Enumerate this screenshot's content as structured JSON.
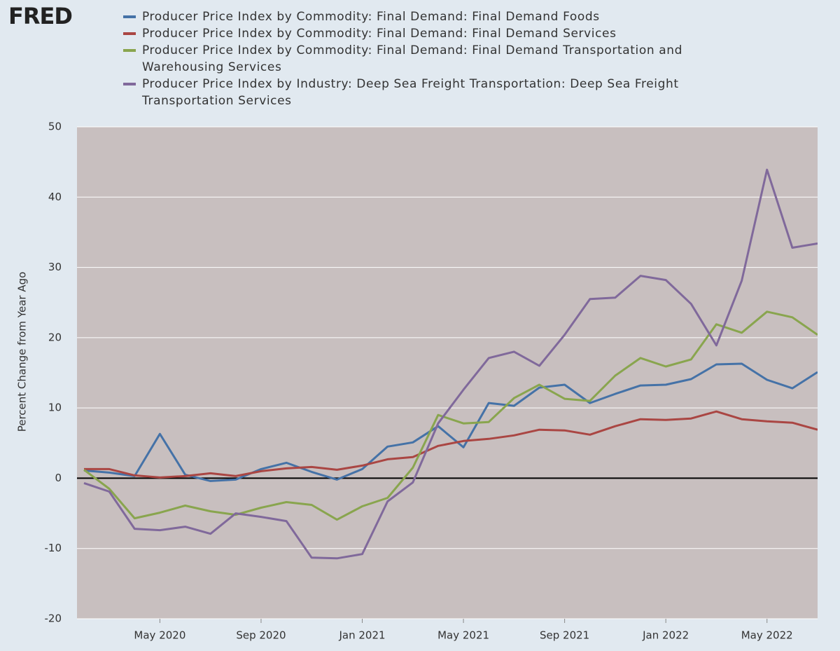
{
  "chart_data": {
    "type": "line",
    "logo": "FRED",
    "y_label": "Percent Change from Year Ago",
    "x": [
      "2020-02",
      "2020-03",
      "2020-04",
      "2020-05",
      "2020-06",
      "2020-07",
      "2020-08",
      "2020-09",
      "2020-10",
      "2020-11",
      "2020-12",
      "2021-01",
      "2021-02",
      "2021-03",
      "2021-04",
      "2021-05",
      "2021-06",
      "2021-07",
      "2021-08",
      "2021-09",
      "2021-10",
      "2021-11",
      "2021-12",
      "2022-01",
      "2022-02",
      "2022-03",
      "2022-04",
      "2022-05",
      "2022-06",
      "2022-07"
    ],
    "xlim": [
      "2020-02",
      "2022-07"
    ],
    "xticks": [
      {
        "value": "2020-05",
        "label": "May 2020"
      },
      {
        "value": "2020-09",
        "label": "Sep 2020"
      },
      {
        "value": "2021-01",
        "label": "Jan 2021"
      },
      {
        "value": "2021-05",
        "label": "May 2021"
      },
      {
        "value": "2021-09",
        "label": "Sep 2021"
      },
      {
        "value": "2022-01",
        "label": "Jan 2022"
      },
      {
        "value": "2022-05",
        "label": "May 2022"
      }
    ],
    "ylim": [
      -20,
      50
    ],
    "yticks": [
      -20,
      -10,
      0,
      10,
      20,
      30,
      40,
      50
    ],
    "grid": true,
    "series": [
      {
        "name": "Producer Price Index by Commodity: Final Demand: Final Demand Foods",
        "color": "#4572a7",
        "values": [
          1.1,
          0.8,
          0.3,
          6.3,
          0.5,
          -0.4,
          -0.2,
          1.3,
          2.2,
          0.9,
          -0.2,
          1.3,
          4.5,
          5.1,
          7.4,
          4.4,
          10.7,
          10.3,
          12.9,
          13.3,
          10.7,
          12.0,
          13.2,
          13.3,
          14.1,
          16.2,
          16.3,
          14.0,
          12.8,
          15.1
        ]
      },
      {
        "name": "Producer Price Index by Commodity: Final Demand: Final Demand Services",
        "color": "#aa4643",
        "values": [
          1.3,
          1.3,
          0.4,
          0.1,
          0.3,
          0.7,
          0.3,
          1.0,
          1.4,
          1.6,
          1.2,
          1.8,
          2.7,
          3.0,
          4.6,
          5.3,
          5.6,
          6.1,
          6.9,
          6.8,
          6.2,
          7.4,
          8.4,
          8.3,
          8.5,
          9.5,
          8.4,
          8.1,
          7.9,
          6.9
        ]
      },
      {
        "name": "Producer Price Index by Commodity: Final Demand: Final Demand Transportation and Warehousing Services",
        "color": "#89a54e",
        "values": [
          1.2,
          -1.5,
          -5.7,
          -4.9,
          -3.9,
          -4.7,
          -5.2,
          -4.2,
          -3.4,
          -3.8,
          -5.9,
          -4.0,
          -2.8,
          1.5,
          9.0,
          7.8,
          8.0,
          11.4,
          13.3,
          11.3,
          11.0,
          14.6,
          17.1,
          15.9,
          16.9,
          21.9,
          20.7,
          23.7,
          22.9,
          20.4
        ]
      },
      {
        "name": "Producer Price Index by Industry: Deep Sea Freight Transportation: Deep Sea Freight Transportation Services",
        "color": "#80699b",
        "values": [
          -0.7,
          -1.9,
          -7.2,
          -7.4,
          -6.9,
          -7.9,
          -5.0,
          -5.5,
          -6.1,
          -11.3,
          -11.4,
          -10.8,
          -3.3,
          -0.6,
          7.8,
          12.6,
          17.1,
          18.0,
          16.0,
          20.4,
          25.5,
          25.7,
          28.8,
          28.2,
          24.8,
          18.9,
          28.1,
          43.9,
          32.8,
          33.4
        ]
      }
    ]
  }
}
